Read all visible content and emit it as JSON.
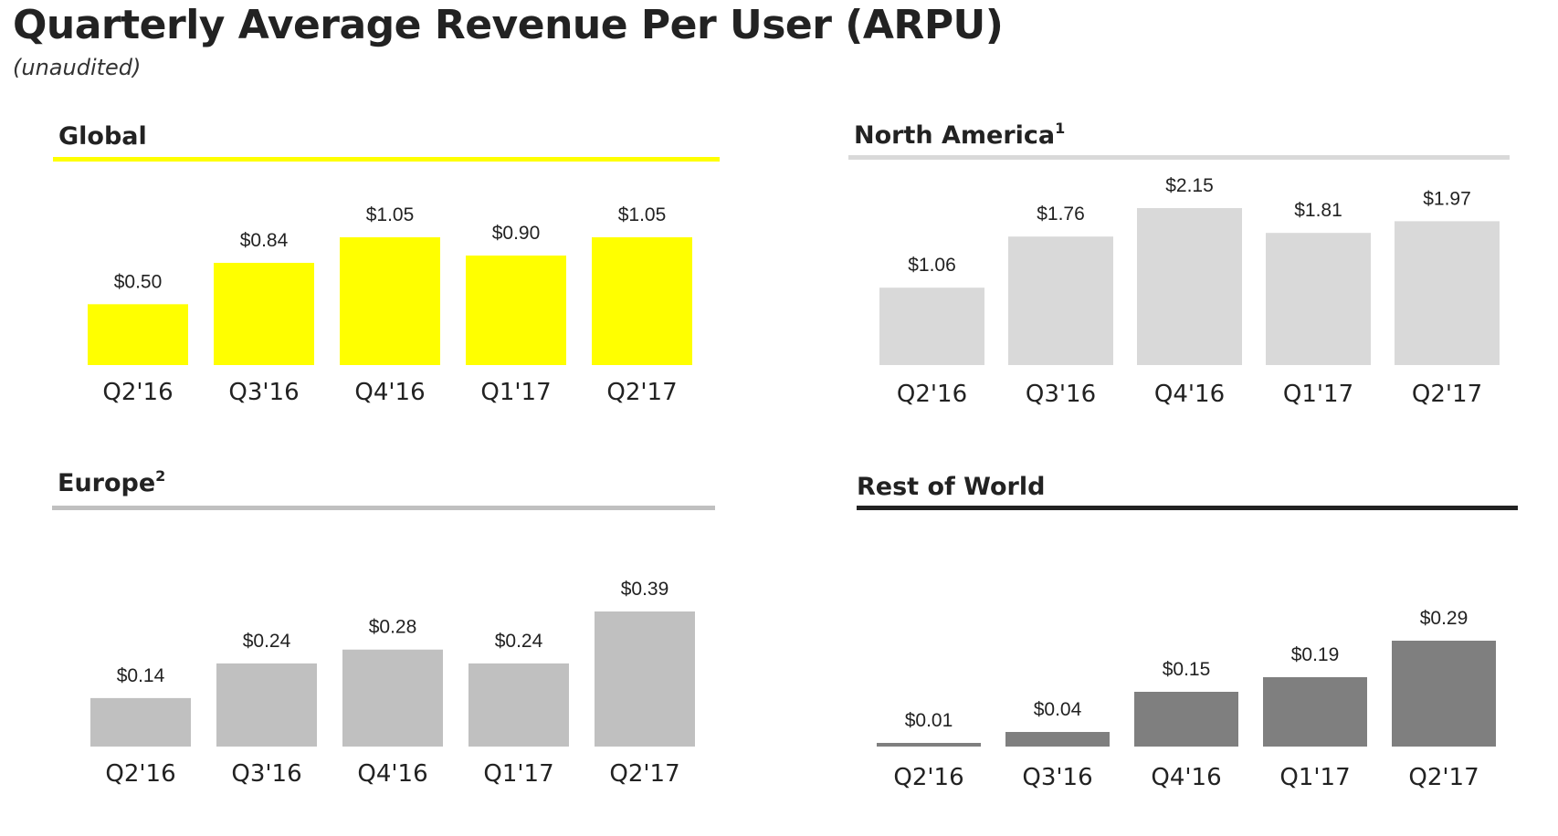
{
  "title": "Quarterly Average Revenue Per User (ARPU)",
  "subtitle": "(unaudited)",
  "chart_data": [
    {
      "type": "bar",
      "title": "Global",
      "title_superscript": "",
      "rule_color": "#ffff00",
      "bar_color": "#ffff00",
      "categories": [
        "Q2'16",
        "Q3'16",
        "Q4'16",
        "Q1'17",
        "Q2'17"
      ],
      "values": [
        0.5,
        0.84,
        1.05,
        0.9,
        1.05
      ],
      "value_labels": [
        "$0.50",
        "$0.84",
        "$1.05",
        "$0.90",
        "$1.05"
      ],
      "xlabel": "",
      "ylabel": "",
      "grid": false,
      "legend": "none"
    },
    {
      "type": "bar",
      "title": "North America",
      "title_superscript": "1",
      "rule_color": "#d9d9d9",
      "bar_color": "#d9d9d9",
      "categories": [
        "Q2'16",
        "Q3'16",
        "Q4'16",
        "Q1'17",
        "Q2'17"
      ],
      "values": [
        1.06,
        1.76,
        2.15,
        1.81,
        1.97
      ],
      "value_labels": [
        "$1.06",
        "$1.76",
        "$2.15",
        "$1.81",
        "$1.97"
      ],
      "xlabel": "",
      "ylabel": "",
      "grid": false,
      "legend": "none"
    },
    {
      "type": "bar",
      "title": "Europe",
      "title_superscript": "2",
      "rule_color": "#c0c0c0",
      "bar_color": "#c0c0c0",
      "categories": [
        "Q2'16",
        "Q3'16",
        "Q4'16",
        "Q1'17",
        "Q2'17"
      ],
      "values": [
        0.14,
        0.24,
        0.28,
        0.24,
        0.39
      ],
      "value_labels": [
        "$0.14",
        "$0.24",
        "$0.28",
        "$0.24",
        "$0.39"
      ],
      "xlabel": "",
      "ylabel": "",
      "grid": false,
      "legend": "none"
    },
    {
      "type": "bar",
      "title": "Rest of World",
      "title_superscript": "",
      "rule_color": "#222222",
      "bar_color": "#7f7f7f",
      "categories": [
        "Q2'16",
        "Q3'16",
        "Q4'16",
        "Q1'17",
        "Q2'17"
      ],
      "values": [
        0.01,
        0.04,
        0.15,
        0.19,
        0.29
      ],
      "value_labels": [
        "$0.01",
        "$0.04",
        "$0.15",
        "$0.19",
        "$0.29"
      ],
      "xlabel": "",
      "ylabel": "",
      "grid": false,
      "legend": "none"
    }
  ]
}
